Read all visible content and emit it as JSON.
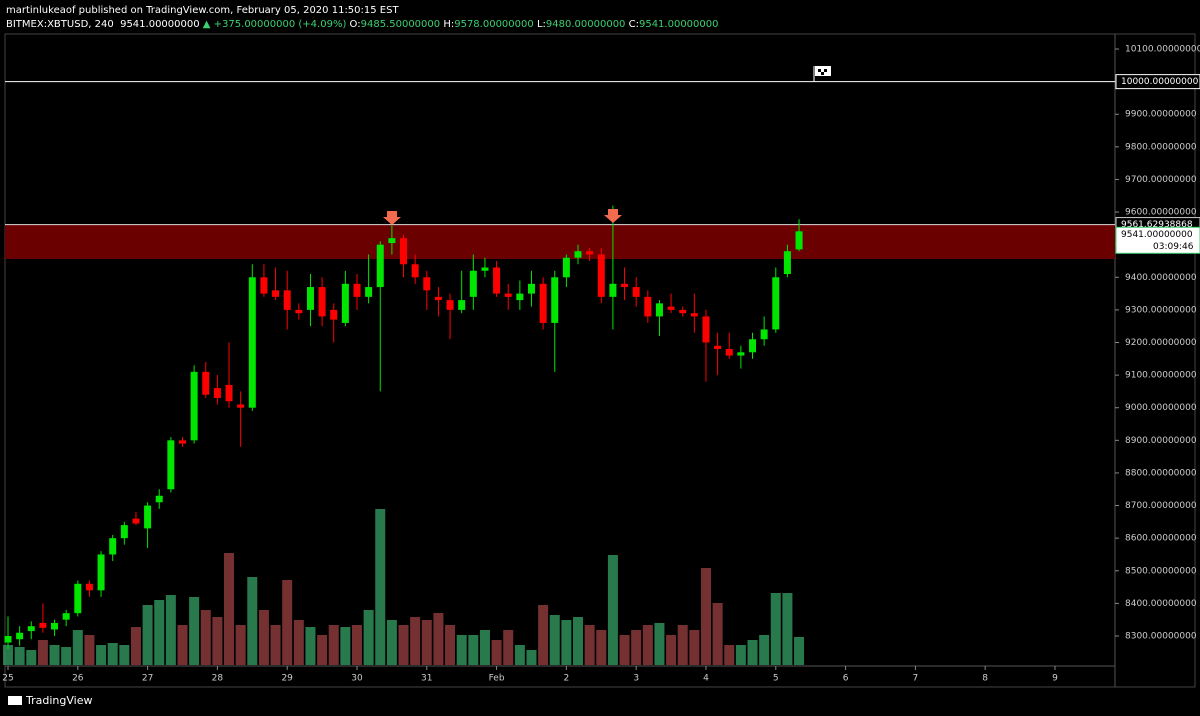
{
  "header": {
    "author_line": "martinlukeaof published on TradingView.com, February 05, 2020 11:50:15 EST",
    "symbol": "BITMEX:XBTUSD, 240",
    "price": "9541.00000000",
    "change": "+375.00000000 (+4.09%)",
    "ohlc": [
      {
        "label": "O:",
        "value": "9485.50000000"
      },
      {
        "label": "H:",
        "value": "9578.00000000"
      },
      {
        "label": "L:",
        "value": "9480.00000000"
      },
      {
        "label": "C:",
        "value": "9541.00000000"
      }
    ]
  },
  "footer": {
    "brand": "TradingView"
  },
  "chart_data": {
    "type": "candlestick",
    "categories": [
      "25",
      null,
      null,
      null,
      null,
      null,
      "26",
      null,
      null,
      null,
      null,
      null,
      "27",
      null,
      null,
      null,
      null,
      null,
      "28",
      null,
      null,
      null,
      null,
      null,
      "29",
      null,
      null,
      null,
      null,
      null,
      "30",
      null,
      null,
      null,
      null,
      null,
      "31",
      null,
      null,
      null,
      null,
      null,
      "Feb",
      null,
      null,
      null,
      null,
      null,
      "2",
      null,
      null,
      null,
      null,
      null,
      "3",
      null,
      null,
      null,
      null,
      null,
      "4",
      null,
      null,
      null,
      null,
      null,
      "5",
      null,
      null,
      null,
      null,
      null,
      "6",
      null,
      null,
      null,
      null,
      null,
      "7",
      null,
      null,
      null,
      null,
      null,
      "8",
      null,
      null,
      null,
      null,
      null,
      "9",
      null,
      null,
      null,
      null,
      null
    ],
    "open": [
      8280,
      8290,
      8315,
      8340,
      8320,
      8350,
      8370,
      8460,
      8440,
      8550,
      8600,
      8660,
      8630,
      8710,
      8750,
      8900,
      8900,
      9110,
      9060,
      9070,
      9010,
      9000,
      9400,
      9360,
      9360,
      9300,
      9300,
      9370,
      9300,
      9260,
      9380,
      9340,
      9370,
      9505,
      9520,
      9440,
      9400,
      9340,
      9330,
      9300,
      9340,
      9420,
      9430,
      9350,
      9330,
      9350,
      9380,
      9260,
      9400,
      9460,
      9480,
      9470,
      9340,
      9380,
      9370,
      9340,
      9280,
      9310,
      9300,
      9290,
      9280,
      9190,
      9180,
      9160,
      9170,
      9210,
      9240,
      9410,
      9485.5,
      null,
      null,
      null,
      null,
      null,
      null,
      null,
      null,
      null,
      null,
      null,
      null,
      null,
      null,
      null,
      null,
      null,
      null,
      null,
      null,
      null,
      null,
      null,
      null,
      null,
      null,
      null
    ],
    "high": [
      8360,
      8330,
      8345,
      8400,
      8350,
      8380,
      8470,
      8470,
      8560,
      8610,
      8650,
      8680,
      8710,
      8750,
      8910,
      8910,
      9130,
      9140,
      9100,
      9200,
      9050,
      9440,
      9440,
      9430,
      9420,
      9320,
      9410,
      9400,
      9320,
      9420,
      9410,
      9470,
      9510,
      9560,
      9530,
      9470,
      9420,
      9370,
      9350,
      9420,
      9470,
      9460,
      9450,
      9380,
      9390,
      9420,
      9400,
      9420,
      9470,
      9500,
      9490,
      9490,
      9620,
      9430,
      9400,
      9360,
      9330,
      9350,
      9310,
      9350,
      9300,
      9230,
      9230,
      9190,
      9230,
      9280,
      9430,
      9500,
      9578,
      null,
      null,
      null,
      null,
      null,
      null,
      null,
      null,
      null,
      null,
      null,
      null,
      null,
      null,
      null,
      null,
      null,
      null,
      null,
      null,
      null,
      null,
      null,
      null,
      null,
      null,
      null
    ],
    "low": [
      8260,
      8270,
      8290,
      8310,
      8300,
      8330,
      8360,
      8420,
      8420,
      8530,
      8580,
      8640,
      8570,
      8690,
      8740,
      8880,
      8890,
      9030,
      9010,
      9000,
      8880,
      8990,
      9340,
      9330,
      9240,
      9270,
      9250,
      9250,
      9200,
      9250,
      9300,
      9320,
      9050,
      9470,
      9400,
      9380,
      9300,
      9280,
      9210,
      9290,
      9300,
      9400,
      9340,
      9300,
      9300,
      9310,
      9240,
      9110,
      9370,
      9440,
      9450,
      9320,
      9240,
      9330,
      9310,
      9260,
      9220,
      9290,
      9280,
      9230,
      9080,
      9100,
      9150,
      9120,
      9150,
      9190,
      9230,
      9400,
      9480,
      null,
      null,
      null,
      null,
      null,
      null,
      null,
      null,
      null,
      null,
      null,
      null,
      null,
      null,
      null,
      null,
      null,
      null,
      null,
      null,
      null,
      null,
      null,
      null,
      null,
      null,
      null
    ],
    "close": [
      8300,
      8310,
      8330,
      8325,
      8340,
      8370,
      8460,
      8440,
      8550,
      8600,
      8640,
      8645,
      8700,
      8730,
      8900,
      8890,
      9110,
      9040,
      9030,
      9020,
      9000,
      9400,
      9350,
      9340,
      9300,
      9290,
      9370,
      9280,
      9270,
      9380,
      9340,
      9370,
      9500,
      9520,
      9440,
      9400,
      9360,
      9330,
      9300,
      9330,
      9420,
      9430,
      9350,
      9340,
      9350,
      9380,
      9260,
      9400,
      9460,
      9480,
      9470,
      9340,
      9380,
      9370,
      9340,
      9280,
      9320,
      9300,
      9290,
      9280,
      9200,
      9180,
      9160,
      9170,
      9210,
      9240,
      9400,
      9480,
      9541,
      null,
      null,
      null,
      null,
      null,
      null,
      null,
      null,
      null,
      null,
      null,
      null,
      null,
      null,
      null,
      null,
      null,
      null,
      null,
      null,
      null,
      null,
      null,
      null,
      null,
      null,
      null
    ],
    "volume": [
      20,
      18,
      15,
      25,
      20,
      18,
      35,
      30,
      20,
      22,
      20,
      38,
      60,
      65,
      70,
      40,
      68,
      55,
      48,
      112,
      40,
      88,
      55,
      40,
      85,
      45,
      38,
      30,
      40,
      38,
      40,
      55,
      156,
      45,
      40,
      48,
      45,
      52,
      40,
      30,
      30,
      35,
      25,
      35,
      20,
      15,
      60,
      50,
      45,
      48,
      40,
      35,
      110,
      30,
      35,
      40,
      42,
      30,
      40,
      35,
      97,
      62,
      20,
      20,
      25,
      30,
      72,
      72,
      28,
      null,
      null,
      null,
      null,
      null,
      null,
      null,
      null,
      null,
      null,
      null,
      null,
      null,
      null,
      null,
      null,
      null,
      null,
      null,
      null,
      null,
      null,
      null,
      null,
      null,
      null,
      null
    ],
    "up_color": "#00e600",
    "down_color": "#ff0000",
    "volume_up_color": "#2f8f5b",
    "volume_down_color": "#8a3a3a",
    "zone_color": "#6b0000",
    "ylim": [
      8211,
      10143
    ],
    "yticks": [
      {
        "value": 8300,
        "label": "8300.00000000"
      },
      {
        "value": 8400,
        "label": "8400.00000000"
      },
      {
        "value": 8500,
        "label": "8500.00000000"
      },
      {
        "value": 8600,
        "label": "8600.00000000"
      },
      {
        "value": 8700,
        "label": "8700.00000000"
      },
      {
        "value": 8800,
        "label": "8800.00000000"
      },
      {
        "value": 8900,
        "label": "8900.00000000"
      },
      {
        "value": 9000,
        "label": "9000.00000000"
      },
      {
        "value": 9100,
        "label": "9100.00000000"
      },
      {
        "value": 9200,
        "label": "9200.00000000"
      },
      {
        "value": 9300,
        "label": "9300.00000000"
      },
      {
        "value": 9400,
        "label": "9400.00000000"
      },
      {
        "value": 9500,
        "label": "9500.00000000"
      },
      {
        "value": 9600,
        "label": "9600.00000000"
      },
      {
        "value": 9700,
        "label": "9700.00000000"
      },
      {
        "value": 9800,
        "label": "9800.00000000"
      },
      {
        "value": 9900,
        "label": "9900.00000000"
      },
      {
        "value": 10000,
        "label": "10000.00000000"
      },
      {
        "value": 10100,
        "label": "10100.00000000"
      }
    ],
    "hline": {
      "value": 10000,
      "label": "10000.00000000"
    },
    "zone": [
      {
        "value": 9456,
        "label": null
      },
      {
        "value": 9561.62938868,
        "label": "9561.62938868"
      }
    ],
    "last_price": {
      "value": 9541,
      "label": "9541.00000000"
    },
    "countdown": "03:09:46"
  }
}
